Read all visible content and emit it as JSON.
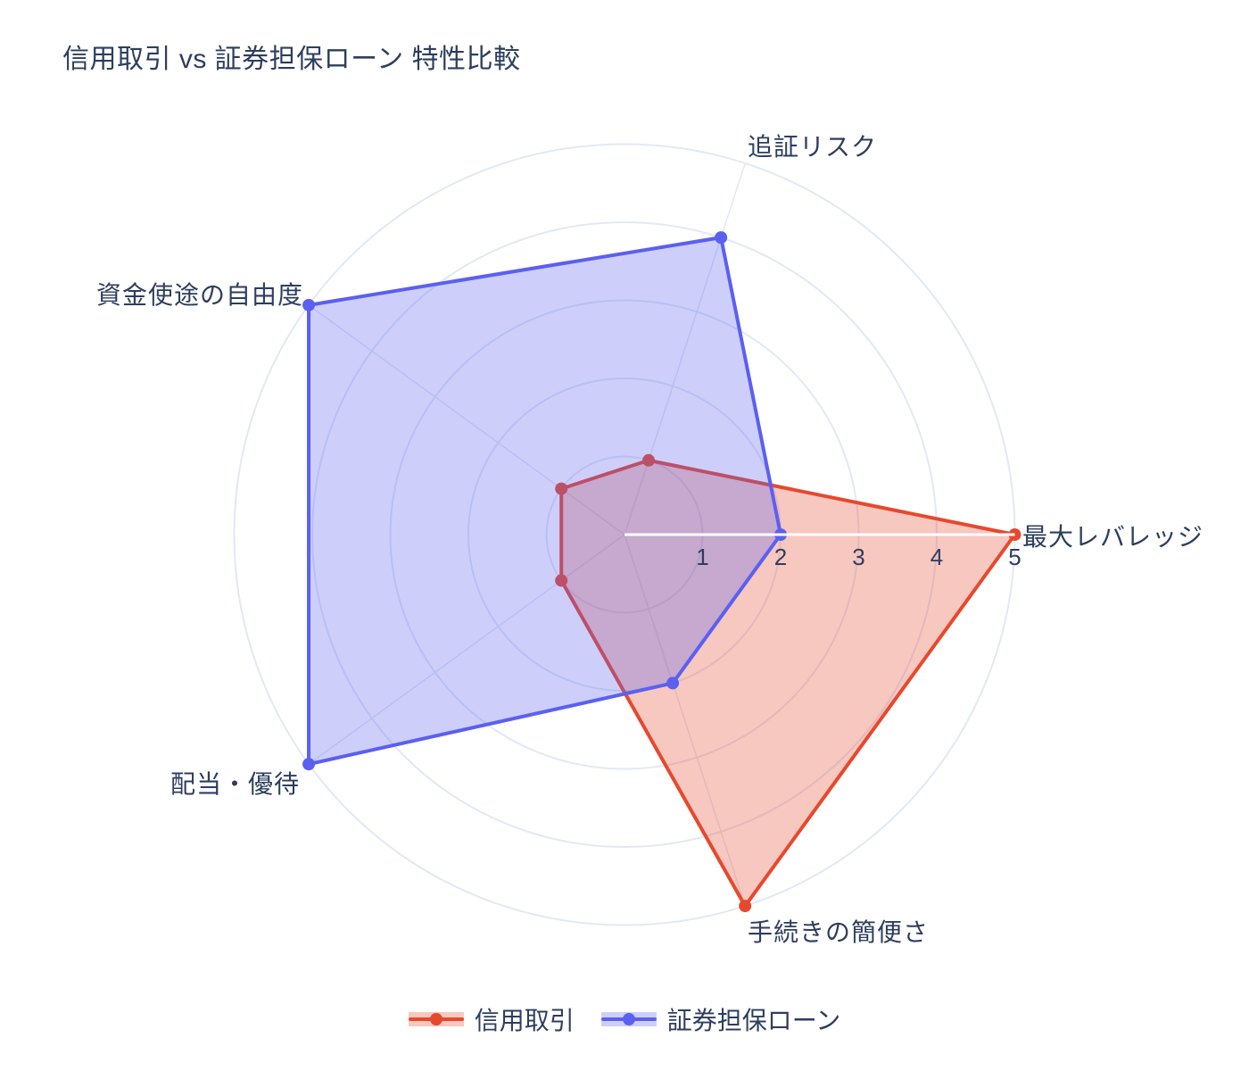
{
  "title": "信用取引 vs 証券担保ローン 特性比較",
  "chart_data": {
    "type": "radar",
    "categories": [
      "最大レバレッジ",
      "追証リスク",
      "資金使途の自由度",
      "配当・優待",
      "手続きの簡便さ"
    ],
    "angles_deg": [
      0,
      72,
      144,
      216,
      288
    ],
    "series": [
      {
        "name": "信用取引",
        "values": [
          5,
          1,
          1,
          1,
          5
        ],
        "color": "#e6492e",
        "fill": "rgba(230,73,46,0.30)"
      },
      {
        "name": "証券担保ローン",
        "values": [
          2,
          4,
          5,
          5,
          2
        ],
        "color": "#5b60f0",
        "fill": "rgba(91,96,240,0.30)"
      }
    ],
    "radial_ticks": [
      "1",
      "2",
      "3",
      "4",
      "5"
    ],
    "r_max": 5,
    "grid": true,
    "legend_position": "bottom"
  },
  "colors": {
    "text": "#2d3e5e",
    "grid": "#e3e8f5",
    "axis_line": "#ffffff",
    "background": "#ffffff"
  }
}
